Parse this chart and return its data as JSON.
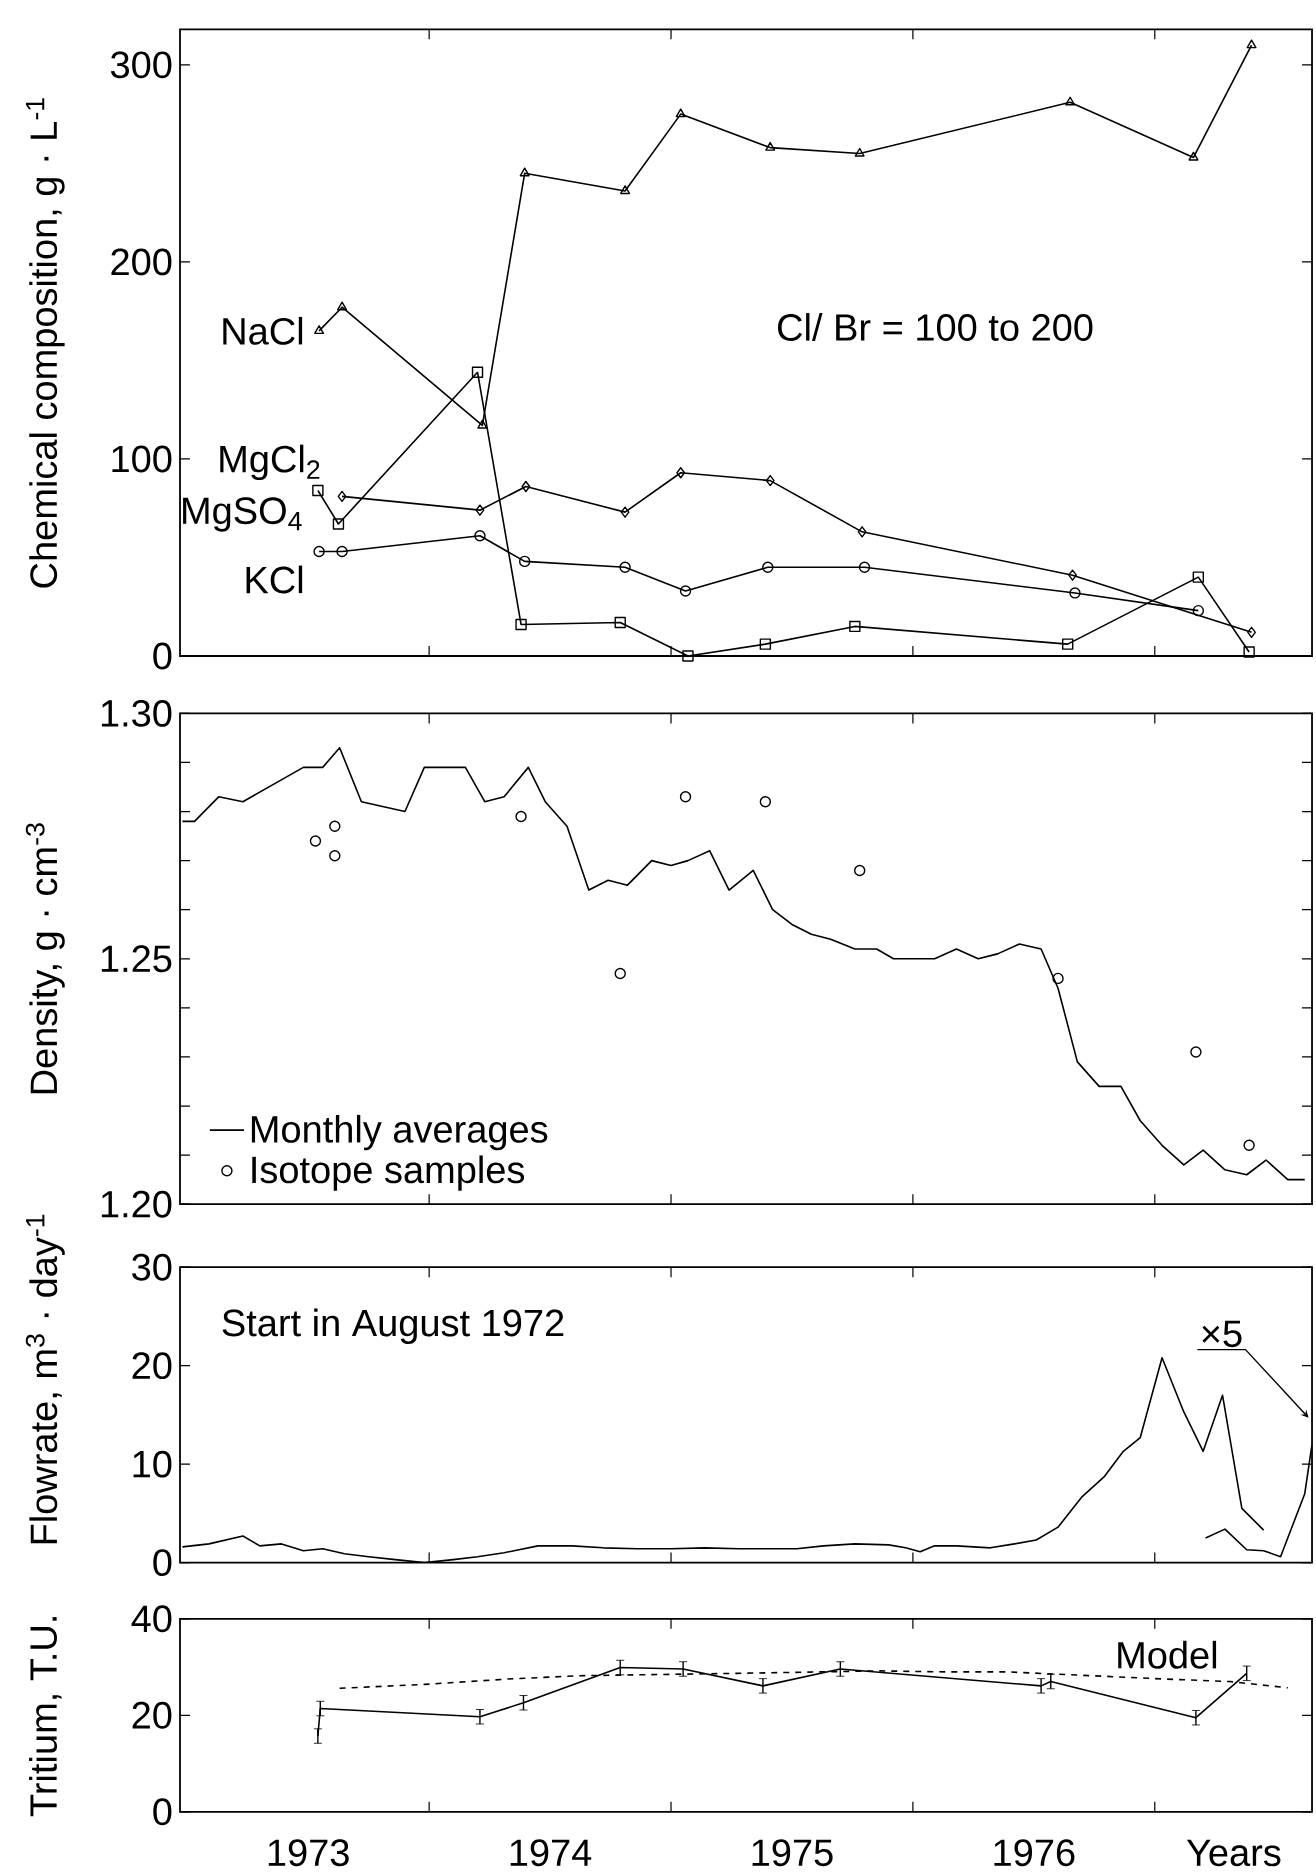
{
  "chart_data": [
    {
      "type": "line",
      "ylabel": "Chemical composition, g · L$^{-1}$",
      "xlim": [
        1972.47,
        1977.15
      ],
      "ylim": [
        0,
        318
      ],
      "xticks": [
        {
          "value": 1973.5,
          "label": null
        },
        {
          "value": 1974.5,
          "label": null
        },
        {
          "value": 1975.5,
          "label": null
        },
        {
          "value": 1976.5,
          "label": null
        }
      ],
      "yticks": [
        0,
        100,
        200,
        300
      ],
      "tick_labels": "y",
      "annotations": [
        "Cl/ Br = 100 to 200"
      ],
      "series": [
        {
          "name": "NaCl",
          "color": "#000000",
          "marker": "triangle",
          "x": [
            1973.045,
            1973.14,
            1973.72,
            1973.895,
            1974.31,
            1974.54,
            1974.91,
            1975.28,
            1976.15,
            1976.66,
            1976.9
          ],
          "values": [
            165,
            177,
            117,
            245,
            236,
            275,
            258,
            255,
            281,
            253,
            310
          ]
        },
        {
          "name": "MgCl$_{2}$",
          "color": "#000000",
          "marker": "diamond",
          "x": [
            1973.14,
            1973.71,
            1973.9,
            1974.31,
            1974.54,
            1974.91,
            1975.29,
            1976.16,
            1976.9
          ],
          "values": [
            81,
            74,
            86,
            73,
            93,
            89,
            63,
            41,
            12
          ]
        },
        {
          "name": "MgSO$_{4}$",
          "color": "#000000",
          "marker": "square",
          "x": [
            1973.04,
            1973.125,
            1973.7,
            1973.88,
            1974.29,
            1974.57,
            1974.89,
            1975.26,
            1976.14,
            1976.68,
            1976.89
          ],
          "values": [
            84,
            67,
            144,
            16,
            17,
            0,
            6,
            15,
            6,
            40,
            2
          ]
        },
        {
          "name": "KCl",
          "color": "#000000",
          "marker": "circle",
          "x": [
            1973.045,
            1973.14,
            1973.71,
            1973.895,
            1974.31,
            1974.56,
            1974.9,
            1975.3,
            1976.17,
            1976.68
          ],
          "values": [
            53,
            53,
            61,
            48,
            45,
            33,
            45,
            45,
            32,
            23
          ]
        }
      ]
    },
    {
      "type": "line",
      "ylabel": "Density, g · cm$^{-3}$",
      "xlim": [
        1972.47,
        1977.15
      ],
      "ylim": [
        1.2,
        1.3
      ],
      "xticks": [
        {
          "value": 1973.5,
          "label": null
        },
        {
          "value": 1974.5,
          "label": null
        },
        {
          "value": 1975.5,
          "label": null
        },
        {
          "value": 1976.5,
          "label": null
        }
      ],
      "yticks": [
        {
          "value": 1.2,
          "label": "1.20"
        },
        {
          "value": 1.21,
          "label": null
        },
        {
          "value": 1.22,
          "label": null
        },
        {
          "value": 1.23,
          "label": null
        },
        {
          "value": 1.24,
          "label": null
        },
        {
          "value": 1.25,
          "label": "1.25"
        },
        {
          "value": 1.26,
          "label": null
        },
        {
          "value": 1.27,
          "label": null
        },
        {
          "value": 1.28,
          "label": null
        },
        {
          "value": 1.29,
          "label": null
        },
        {
          "value": 1.3,
          "label": "1.30"
        }
      ],
      "tick_labels": "y",
      "legend": "bottom left",
      "series": [
        {
          "name": "Monthly averages",
          "color": "#000000",
          "type": "line",
          "x": [
            1972.48,
            1972.53,
            1972.63,
            1972.73,
            1972.98,
            1973.06,
            1973.13,
            1973.22,
            1973.31,
            1973.4,
            1973.48,
            1973.57,
            1973.65,
            1973.73,
            1973.81,
            1973.91,
            1973.98,
            1974.07,
            1974.16,
            1974.24,
            1974.32,
            1974.42,
            1974.5,
            1974.57,
            1974.66,
            1974.74,
            1974.84,
            1974.92,
            1975.0,
            1975.08,
            1975.16,
            1975.26,
            1975.35,
            1975.42,
            1975.51,
            1975.59,
            1975.68,
            1975.77,
            1975.85,
            1975.94,
            1976.03,
            1976.1,
            1976.18,
            1976.27,
            1976.36,
            1976.44,
            1976.53,
            1976.62,
            1976.7,
            1976.79,
            1976.88,
            1976.96,
            1977.05,
            1977.12
          ],
          "values": [
            1.278,
            1.278,
            1.283,
            1.282,
            1.289,
            1.289,
            1.293,
            1.282,
            1.281,
            1.28,
            1.289,
            1.289,
            1.289,
            1.282,
            1.283,
            1.289,
            1.282,
            1.277,
            1.264,
            1.266,
            1.265,
            1.27,
            1.269,
            1.27,
            1.272,
            1.264,
            1.268,
            1.26,
            1.257,
            1.255,
            1.254,
            1.252,
            1.252,
            1.25,
            1.25,
            1.25,
            1.252,
            1.25,
            1.251,
            1.253,
            1.252,
            1.244,
            1.229,
            1.224,
            1.224,
            1.217,
            1.212,
            1.208,
            1.211,
            1.207,
            1.206,
            1.209,
            1.205,
            1.205
          ]
        },
        {
          "name": "Isotope samples",
          "color": "#000000",
          "type": "scatter",
          "marker": "circle",
          "x": [
            1973.03,
            1973.11,
            1973.11,
            1973.88,
            1974.29,
            1974.56,
            1974.89,
            1975.28,
            1976.1,
            1976.67,
            1976.89
          ],
          "values": [
            1.274,
            1.277,
            1.271,
            1.279,
            1.247,
            1.283,
            1.282,
            1.268,
            1.246,
            1.231,
            1.212
          ]
        }
      ]
    },
    {
      "type": "line",
      "ylabel": "Flowrate, m$^{3}$ · day$^{-1}$",
      "xlim": [
        1972.47,
        1977.15
      ],
      "ylim": [
        0,
        30
      ],
      "xticks": [
        {
          "value": 1973.5,
          "label": null
        },
        {
          "value": 1974.5,
          "label": null
        },
        {
          "value": 1975.5,
          "label": null
        },
        {
          "value": 1976.5,
          "label": null
        }
      ],
      "yticks": [
        0,
        10,
        20,
        30
      ],
      "tick_labels": "y",
      "annotations": [
        "Start in August 1972",
        "×5"
      ],
      "series": [
        {
          "color": "#000000",
          "x": [
            1972.48,
            1972.59,
            1972.73,
            1972.8,
            1972.89,
            1972.98,
            1973.06,
            1973.15,
            1973.25,
            1973.36,
            1973.48,
            1973.6,
            1973.7,
            1973.81,
            1973.95,
            1974.09,
            1974.22,
            1974.36,
            1974.5,
            1974.64,
            1974.78,
            1974.92,
            1975.02,
            1975.13,
            1975.26,
            1975.4,
            1975.47,
            1975.53,
            1975.59,
            1975.68,
            1975.82,
            1975.92,
            1976.01,
            1976.1,
            1976.2,
            1976.29,
            1976.37,
            1976.44,
            1976.53,
            1976.62,
            1976.7,
            1976.78,
            1976.86,
            1976.95
          ],
          "values": [
            1.6,
            1.9,
            2.7,
            1.7,
            1.9,
            1.2,
            1.4,
            0.9,
            0.6,
            0.3,
            0,
            0.3,
            0.6,
            1.0,
            1.7,
            1.7,
            1.5,
            1.4,
            1.4,
            1.5,
            1.4,
            1.4,
            1.4,
            1.7,
            1.9,
            1.8,
            1.5,
            1.1,
            1.7,
            1.7,
            1.5,
            1.9,
            2.3,
            3.6,
            6.7,
            8.7,
            11.3,
            12.7,
            20.8,
            15.3,
            11.3,
            17.0,
            5.5,
            3.3
          ]
        },
        {
          "color": "#000000",
          "x": [
            1976.71,
            1976.79,
            1976.88,
            1976.95,
            1977.02,
            1977.12,
            1977.15
          ],
          "values": [
            2.5,
            3.4,
            1.3,
            1.2,
            0.6,
            7.0,
            12.0
          ]
        }
      ]
    },
    {
      "type": "line",
      "ylabel": "Tritium, T.U.",
      "xlabel": "Years",
      "xlim": [
        1972.47,
        1977.15
      ],
      "ylim": [
        0,
        40
      ],
      "xticks": [
        {
          "value": 1973,
          "label": "1973"
        },
        {
          "value": 1973.5,
          "label": null
        },
        {
          "value": 1974,
          "label": "1974"
        },
        {
          "value": 1974.5,
          "label": null
        },
        {
          "value": 1975,
          "label": "1975"
        },
        {
          "value": 1975.5,
          "label": null
        },
        {
          "value": 1976,
          "label": "1976"
        },
        {
          "value": 1976.5,
          "label": null
        }
      ],
      "yticks": [
        0,
        20,
        40
      ],
      "series": [
        {
          "color": "#000000",
          "x": [
            1973.04,
            1973.05,
            1973.71,
            1973.89,
            1974.29,
            1974.55,
            1974.88,
            1975.2,
            1976.03,
            1976.07,
            1976.67,
            1976.88
          ],
          "values": [
            15.7,
            21.4,
            19.7,
            22.6,
            29.9,
            29.6,
            26.1,
            29.6,
            26.1,
            27.0,
            19.5,
            28.7
          ],
          "errors": [
            1.5,
            1.5,
            1.5,
            1.5,
            1.5,
            1.5,
            1.5,
            1.5,
            1.5,
            1.5,
            1.5,
            1.5
          ]
        },
        {
          "name": "Model",
          "color": "#000000",
          "line_style": "dashed",
          "x": [
            1973.13,
            1973.48,
            1973.82,
            1974.12,
            1974.77,
            1975.36,
            1975.64,
            1975.89,
            1976.24,
            1976.55,
            1976.81,
            1977.05
          ],
          "values": [
            25.6,
            26.4,
            27.5,
            28.2,
            28.7,
            29.2,
            29.0,
            29.0,
            28.2,
            27.5,
            27.0,
            25.7
          ]
        }
      ]
    }
  ]
}
